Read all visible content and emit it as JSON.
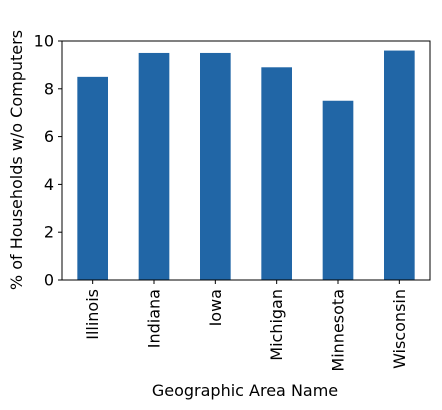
{
  "chart_data": {
    "type": "bar",
    "title": "",
    "xlabel": "Geographic Area Name",
    "ylabel": "% of Households w/o Computers",
    "categories": [
      "Illinois",
      "Indiana",
      "Iowa",
      "Michigan",
      "Minnesota",
      "Wisconsin"
    ],
    "values": [
      8.5,
      9.5,
      9.5,
      8.9,
      7.5,
      9.6
    ],
    "ylim": [
      0,
      10
    ],
    "yticks": [
      0,
      2,
      4,
      6,
      8,
      10
    ],
    "grid": false,
    "bar_color": "#2166a6"
  }
}
